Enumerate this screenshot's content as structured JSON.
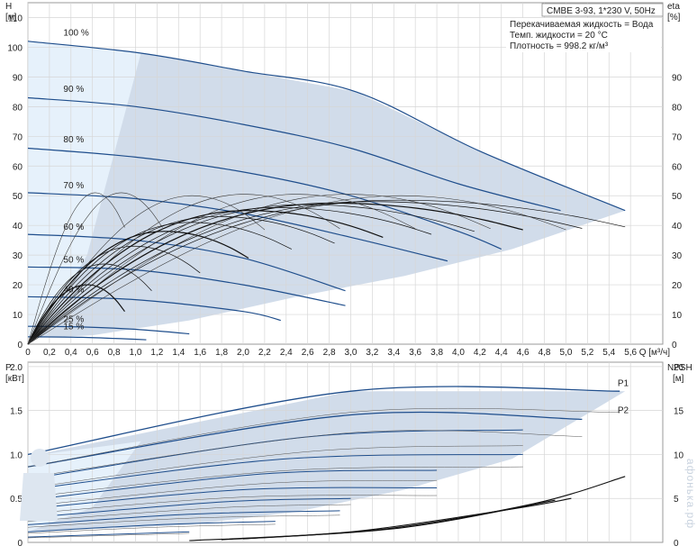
{
  "chart_data": [
    {
      "type": "line",
      "panel": "head",
      "title_box": "CMBE 3-93, 1*230 V, 50Hz",
      "info_lines": [
        "Перекачиваемая жидкость = Вода",
        "Темп. жидкости = 20 °C",
        "Плотность = 998.2 кг/м³"
      ],
      "ylabel_left": [
        "H",
        "[м]"
      ],
      "ylabel_right": [
        "eta",
        "[%]"
      ],
      "xlabel": "Q [м³/ч]",
      "xlim": [
        0,
        5.9
      ],
      "ylim": [
        0,
        115
      ],
      "x_ticks": [
        "0",
        "0,2",
        "0,4",
        "0,6",
        "0,8",
        "1,0",
        "1,2",
        "1,4",
        "1,6",
        "1,8",
        "2,0",
        "2,2",
        "2,4",
        "2,6",
        "2,8",
        "3,0",
        "3,2",
        "3,4",
        "3,6",
        "3,8",
        "4,0",
        "4,2",
        "4,4",
        "4,6",
        "4,8",
        "5,0",
        "5,2",
        "5,4",
        "5,6"
      ],
      "y_ticks_left": [
        "0",
        "10",
        "20",
        "30",
        "40",
        "50",
        "60",
        "70",
        "80",
        "90",
        "100",
        "110"
      ],
      "y_ticks_right": [
        "0",
        "10",
        "20",
        "30",
        "40",
        "50",
        "60",
        "70",
        "80",
        "90"
      ],
      "grid": true,
      "series": [
        {
          "name": "100 %",
          "x": [
            0,
            1.05,
            2.0,
            3.05,
            4.2,
            5.55
          ],
          "y": [
            102,
            98,
            92,
            85,
            65,
            45
          ]
        },
        {
          "name": "90 %",
          "x": [
            0,
            1.0,
            2.0,
            3.0,
            4.0,
            4.95
          ],
          "y": [
            83,
            80,
            74,
            66,
            54,
            45
          ]
        },
        {
          "name": "80 %",
          "x": [
            0,
            1.0,
            2.0,
            3.0,
            4.0,
            4.4
          ],
          "y": [
            66,
            63,
            58,
            50,
            38,
            32
          ]
        },
        {
          "name": "70 %",
          "x": [
            0,
            1.0,
            2.0,
            3.0,
            3.9
          ],
          "y": [
            51,
            49,
            44,
            36,
            28
          ]
        },
        {
          "name": "60 %",
          "x": [
            0,
            1.0,
            2.0,
            2.95
          ],
          "y": [
            37,
            35,
            29,
            18
          ]
        },
        {
          "name": "50 %",
          "x": [
            0,
            1.0,
            2.0,
            2.95
          ],
          "y": [
            26,
            25,
            20,
            13
          ]
        },
        {
          "name": "40 %",
          "x": [
            0,
            1.0,
            2.0,
            2.35
          ],
          "y": [
            16,
            15,
            11,
            8
          ]
        },
        {
          "name": "25 %",
          "x": [
            0,
            0.5,
            1.0,
            1.5
          ],
          "y": [
            6,
            5.8,
            5,
            3.5
          ]
        },
        {
          "name": "15 %",
          "x": [
            0,
            0.5,
            1.1
          ],
          "y": [
            2.5,
            2.3,
            1.5
          ]
        }
      ],
      "eta_max_percent": 50
    },
    {
      "type": "line",
      "panel": "power",
      "ylabel_left": [
        "P",
        "[кВт]"
      ],
      "ylabel_right": [
        "NPSH",
        "[м]"
      ],
      "ylim_left": [
        0,
        2.0
      ],
      "ylim_right": [
        0,
        20
      ],
      "y_ticks_left": [
        "0",
        "0.5",
        "1.0",
        "1.5",
        "2.0"
      ],
      "y_ticks_right": [
        "0",
        "5",
        "10",
        "15",
        "20"
      ],
      "grid": true,
      "series": [
        {
          "name": "P1",
          "x": [
            0,
            3.0,
            5.5
          ],
          "y": [
            1.0,
            1.72,
            1.72
          ]
        },
        {
          "name": "P2",
          "x": [
            0,
            3.0,
            5.5
          ],
          "y": [
            0.85,
            1.45,
            1.4
          ]
        },
        {
          "name": "NPSH",
          "x": [
            1.5,
            3.0,
            4.5,
            5.5
          ],
          "y_right": [
            0.2,
            1.5,
            4.0,
            7.5
          ]
        }
      ]
    }
  ],
  "watermark": "афонька.рф"
}
